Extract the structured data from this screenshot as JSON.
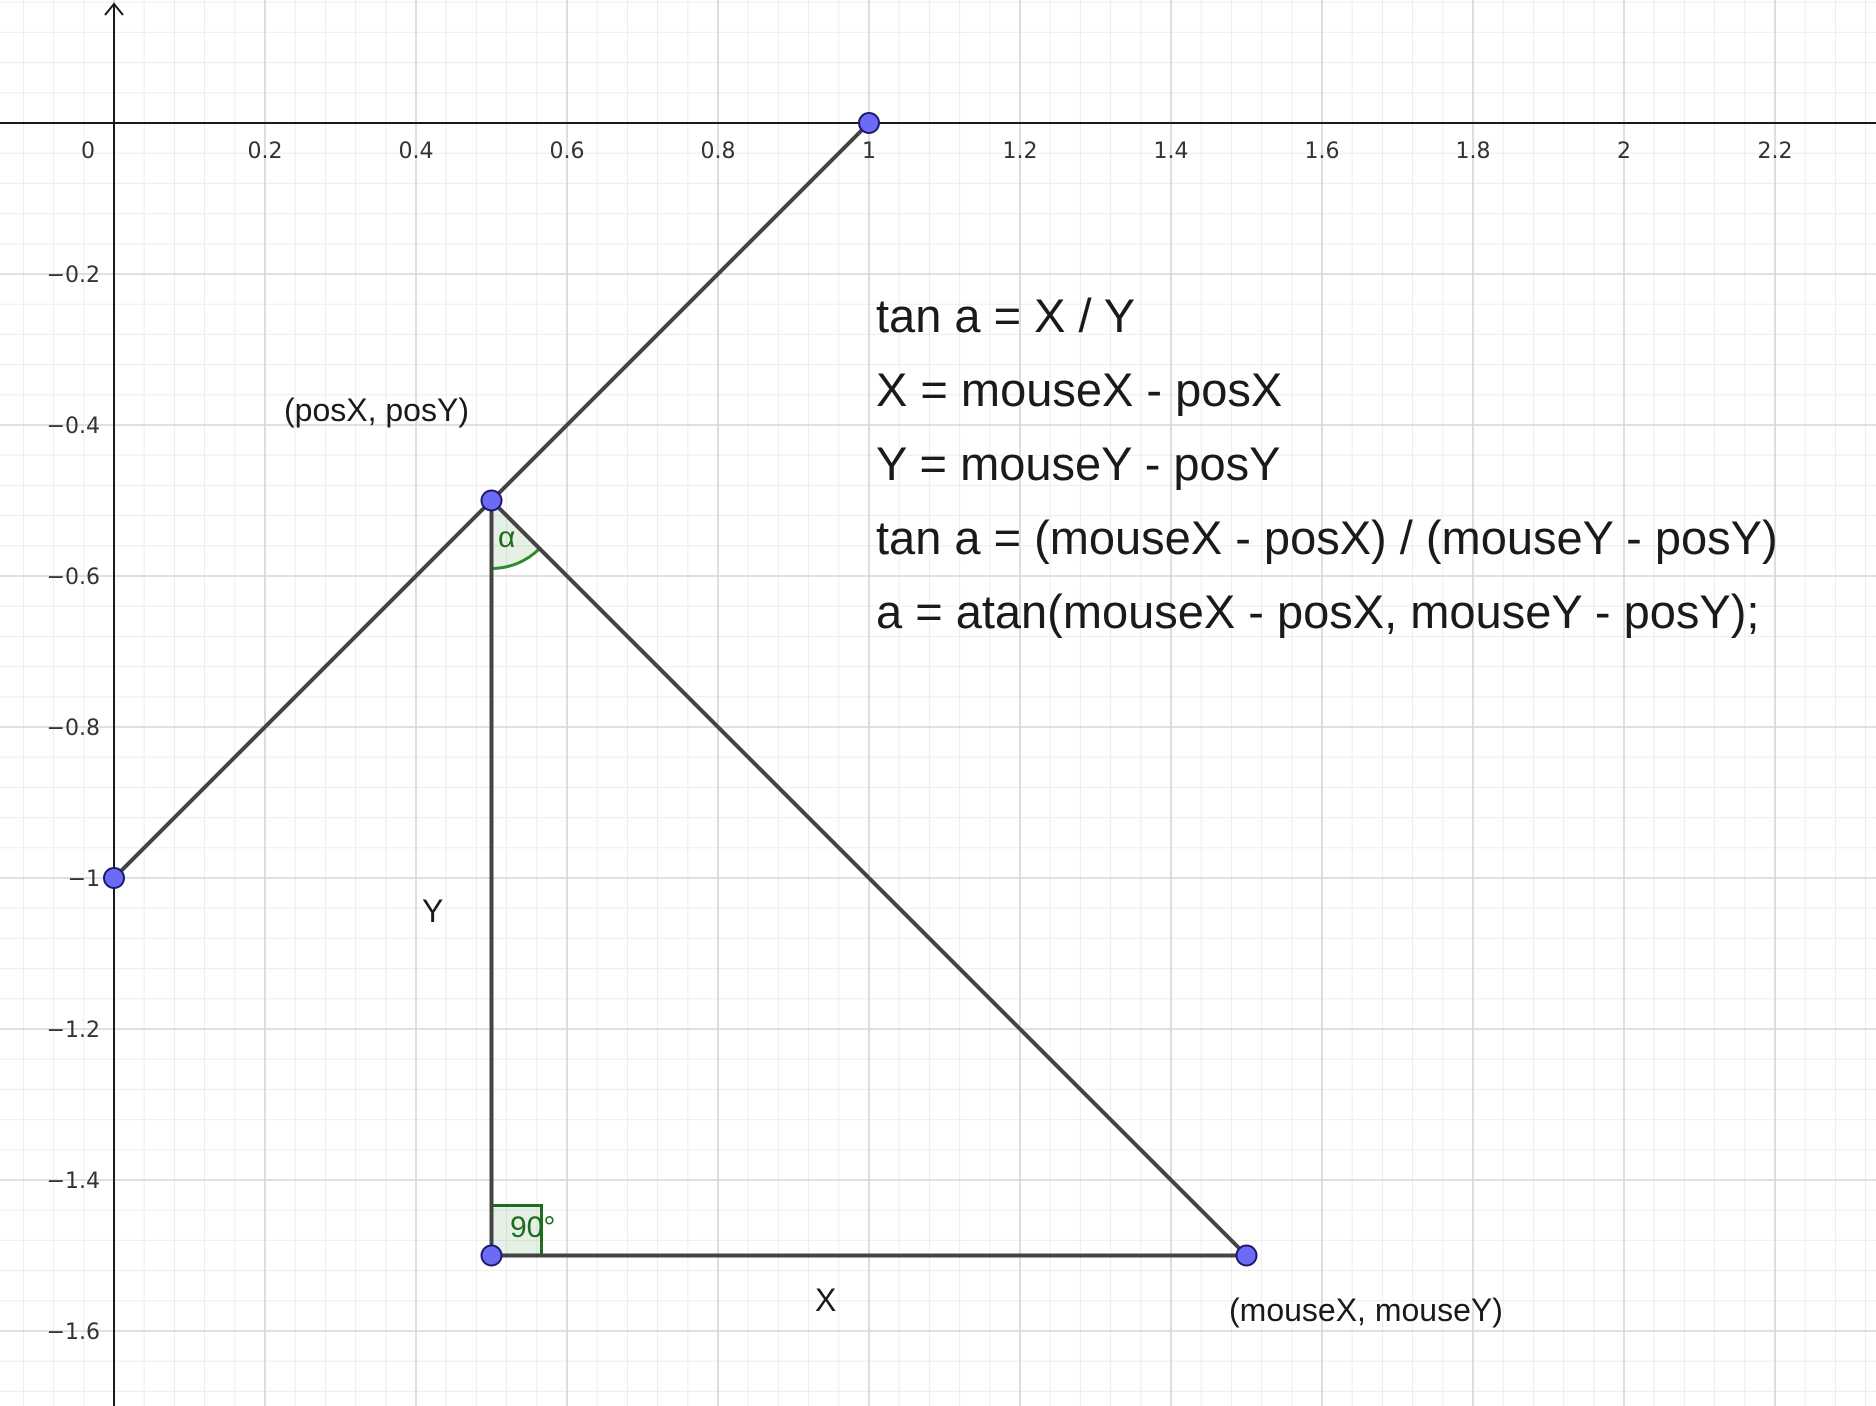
{
  "axes": {
    "x_ticks": [
      "0",
      "0.2",
      "0.4",
      "0.6",
      "0.8",
      "1",
      "1.2",
      "1.4",
      "1.6",
      "1.8",
      "2",
      "2.2"
    ],
    "y_ticks": [
      "−0.2",
      "−0.4",
      "−0.6",
      "−0.8",
      "−1",
      "−1.2",
      "−1.4",
      "−1.6"
    ],
    "x_range": [
      -0.15,
      2.33
    ],
    "y_range": [
      -1.7,
      0.16
    ]
  },
  "points": [
    {
      "x": 1,
      "y": 0
    },
    {
      "x": 0.5,
      "y": -0.5
    },
    {
      "x": 0,
      "y": -1
    },
    {
      "x": 0.5,
      "y": -1.5
    },
    {
      "x": 1.5,
      "y": -1.5
    }
  ],
  "segments": [
    {
      "from": [
        1,
        0
      ],
      "to": [
        0,
        -1
      ]
    },
    {
      "from": [
        0.5,
        -0.5
      ],
      "to": [
        0.5,
        -1.5
      ]
    },
    {
      "from": [
        0.5,
        -1.5
      ],
      "to": [
        1.5,
        -1.5
      ]
    },
    {
      "from": [
        0.5,
        -0.5
      ],
      "to": [
        1.5,
        -1.5
      ]
    }
  ],
  "labels": {
    "pos": "(posX, posY)",
    "mouse": "(mouseX, mouseY)",
    "side_y": "Y",
    "side_x": "X",
    "angle_alpha": "α",
    "angle_right": "90°"
  },
  "formulas": [
    "tan a = X / Y",
    "X = mouseX - posX",
    "Y = mouseY - posY",
    "tan a = (mouseX - posX) /  (mouseY - posY)",
    "a = atan(mouseX - posX,  mouseY - posY);"
  ],
  "colors": {
    "point_fill": "#6b6bf5",
    "segment": "#444444",
    "angle": "#2e8b2e",
    "grid_major": "#d6d6d6",
    "grid_minor": "#ededed"
  }
}
